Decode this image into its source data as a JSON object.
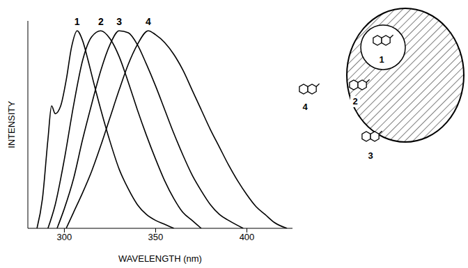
{
  "chart_data": {
    "type": "line",
    "x_label": "WAVELENGTH (nm)",
    "y_label": "INTENSITY",
    "xlim": [
      280,
      425
    ],
    "xticks": [
      300,
      350,
      400
    ],
    "ylim": [
      0,
      105
    ],
    "tick_labels": "x",
    "grid": false,
    "series": [
      {
        "name": "1",
        "color": "#000000",
        "x": [
          285,
          288,
          291,
          293,
          295,
          298,
          301,
          304,
          307,
          310,
          313,
          316,
          320,
          325,
          330,
          335,
          340,
          345,
          350,
          355,
          360
        ],
        "values": [
          0,
          15,
          45,
          62,
          58,
          62,
          75,
          92,
          100,
          95,
          85,
          74,
          60,
          44,
          30,
          20,
          12,
          7,
          4,
          2,
          0
        ]
      },
      {
        "name": "2",
        "color": "#000000",
        "x": [
          291,
          295,
          300,
          305,
          310,
          315,
          320,
          325,
          330,
          335,
          340,
          345,
          350,
          355,
          360,
          365,
          370,
          375
        ],
        "values": [
          0,
          12,
          35,
          62,
          85,
          97,
          100,
          96,
          87,
          74,
          60,
          47,
          35,
          24,
          15,
          8,
          4,
          0
        ]
      },
      {
        "name": "3",
        "color": "#000000",
        "x": [
          296,
          300,
          305,
          310,
          315,
          320,
          325,
          330,
          335,
          340,
          345,
          350,
          355,
          360,
          365,
          370,
          375,
          380,
          385,
          390,
          398
        ],
        "values": [
          0,
          10,
          25,
          45,
          63,
          80,
          93,
          100,
          99,
          93,
          83,
          72,
          60,
          48,
          37,
          27,
          19,
          12,
          7,
          4,
          0
        ]
      },
      {
        "name": "4",
        "color": "#000000",
        "x": [
          301,
          305,
          310,
          315,
          320,
          325,
          330,
          335,
          340,
          346,
          350,
          355,
          360,
          365,
          370,
          375,
          380,
          385,
          390,
          395,
          400,
          405,
          410,
          415,
          422
        ],
        "values": [
          0,
          8,
          18,
          29,
          42,
          56,
          70,
          83,
          93,
          100,
          98,
          94,
          88,
          80,
          70,
          60,
          50,
          41,
          32,
          24,
          17,
          11,
          7,
          3,
          0
        ]
      }
    ]
  },
  "diagram": {
    "labels": [
      "1",
      "2",
      "3",
      "4"
    ]
  }
}
